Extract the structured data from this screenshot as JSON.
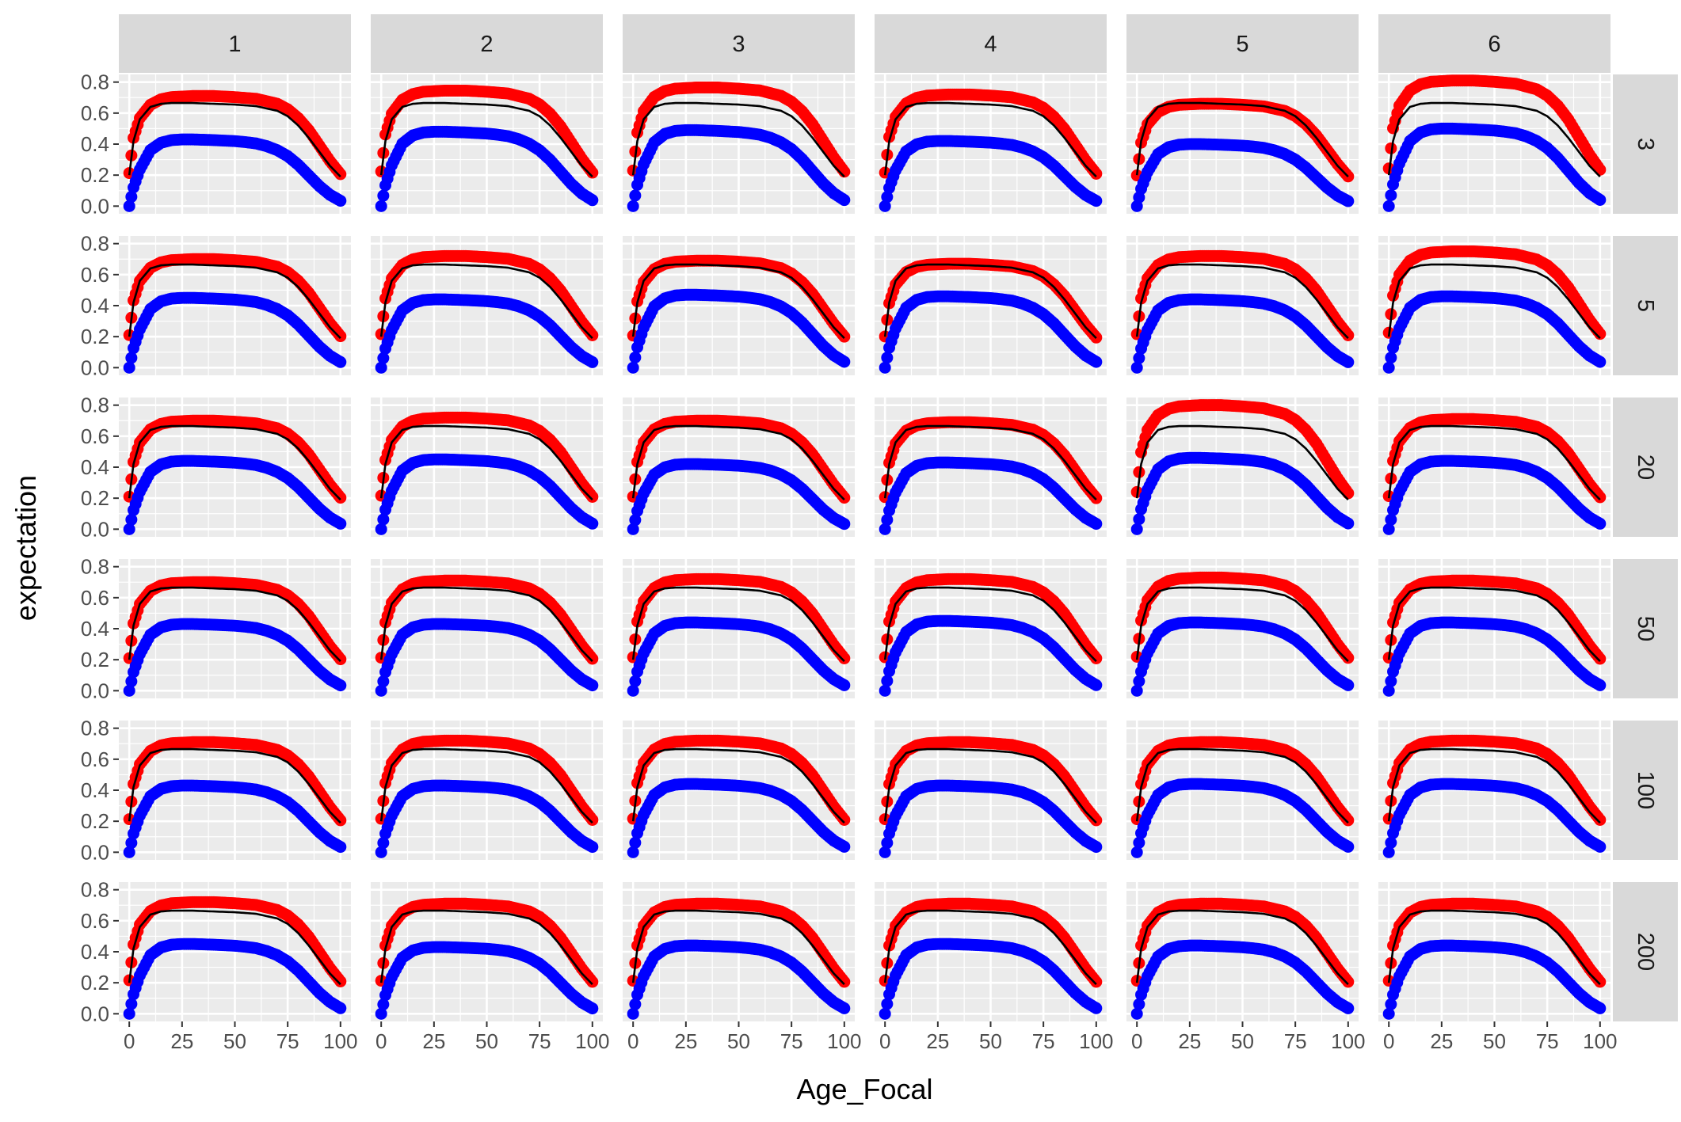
{
  "chart_data": {
    "type": "scatter",
    "facet": {
      "columns": [
        "1",
        "2",
        "3",
        "4",
        "5",
        "6"
      ],
      "rows": [
        "3",
        "5",
        "20",
        "50",
        "100",
        "200"
      ]
    },
    "xlabel": "Age_Focal",
    "ylabel": "expectation",
    "xlim": [
      0,
      100
    ],
    "ylim": [
      0,
      0.8
    ],
    "x_ticks": [
      "0",
      "25",
      "50",
      "75",
      "100"
    ],
    "y_ticks": [
      "0.0",
      "0.2",
      "0.4",
      "0.6",
      "0.8"
    ],
    "grid": true,
    "legend": "none",
    "colors": {
      "upper_points": "#ff0000",
      "lower_points": "#0000ff",
      "line": "#000000",
      "panel_background": "#ebebeb",
      "strip_background": "#d9d9d9",
      "grid": "#ffffff"
    },
    "reference_line": {
      "x": [
        0,
        2,
        5,
        10,
        15,
        20,
        30,
        40,
        50,
        60,
        70,
        75,
        80,
        85,
        90,
        95,
        100
      ],
      "y": [
        0.2,
        0.42,
        0.56,
        0.64,
        0.66,
        0.665,
        0.665,
        0.66,
        0.655,
        0.645,
        0.615,
        0.58,
        0.52,
        0.44,
        0.35,
        0.26,
        0.19
      ]
    },
    "series_shape": {
      "upper_x": [
        0,
        2,
        5,
        10,
        15,
        20,
        30,
        40,
        50,
        60,
        70,
        75,
        80,
        85,
        90,
        95,
        100
      ],
      "upper_y_relative": [
        0.3,
        0.62,
        0.8,
        0.92,
        0.97,
        0.99,
        1.0,
        1.0,
        0.99,
        0.975,
        0.93,
        0.88,
        0.8,
        0.69,
        0.55,
        0.41,
        0.29
      ],
      "lower_x": [
        0,
        2,
        5,
        10,
        15,
        20,
        25,
        30,
        40,
        50,
        55,
        60,
        65,
        70,
        75,
        80,
        85,
        90,
        95,
        100
      ],
      "lower_y_relative": [
        0.0,
        0.28,
        0.55,
        0.84,
        0.95,
        0.99,
        1.0,
        1.0,
        0.99,
        0.975,
        0.96,
        0.94,
        0.9,
        0.84,
        0.75,
        0.62,
        0.46,
        0.3,
        0.17,
        0.08
      ]
    },
    "panels": [
      {
        "row": "3",
        "col": "1",
        "upper_plateau": 0.71,
        "lower_plateau": 0.43
      },
      {
        "row": "3",
        "col": "2",
        "upper_plateau": 0.745,
        "lower_plateau": 0.48
      },
      {
        "row": "3",
        "col": "3",
        "upper_plateau": 0.765,
        "lower_plateau": 0.49
      },
      {
        "row": "3",
        "col": "4",
        "upper_plateau": 0.72,
        "lower_plateau": 0.42
      },
      {
        "row": "3",
        "col": "5",
        "upper_plateau": 0.66,
        "lower_plateau": 0.4
      },
      {
        "row": "3",
        "col": "6",
        "upper_plateau": 0.81,
        "lower_plateau": 0.5
      },
      {
        "row": "5",
        "col": "1",
        "upper_plateau": 0.7,
        "lower_plateau": 0.45
      },
      {
        "row": "5",
        "col": "2",
        "upper_plateau": 0.72,
        "lower_plateau": 0.44
      },
      {
        "row": "5",
        "col": "3",
        "upper_plateau": 0.69,
        "lower_plateau": 0.47
      },
      {
        "row": "5",
        "col": "4",
        "upper_plateau": 0.67,
        "lower_plateau": 0.46
      },
      {
        "row": "5",
        "col": "5",
        "upper_plateau": 0.72,
        "lower_plateau": 0.44
      },
      {
        "row": "5",
        "col": "6",
        "upper_plateau": 0.75,
        "lower_plateau": 0.46
      },
      {
        "row": "20",
        "col": "1",
        "upper_plateau": 0.7,
        "lower_plateau": 0.44
      },
      {
        "row": "20",
        "col": "2",
        "upper_plateau": 0.72,
        "lower_plateau": 0.45
      },
      {
        "row": "20",
        "col": "3",
        "upper_plateau": 0.7,
        "lower_plateau": 0.42
      },
      {
        "row": "20",
        "col": "4",
        "upper_plateau": 0.69,
        "lower_plateau": 0.43
      },
      {
        "row": "20",
        "col": "5",
        "upper_plateau": 0.8,
        "lower_plateau": 0.46
      },
      {
        "row": "20",
        "col": "6",
        "upper_plateau": 0.71,
        "lower_plateau": 0.44
      },
      {
        "row": "50",
        "col": "1",
        "upper_plateau": 0.7,
        "lower_plateau": 0.43
      },
      {
        "row": "50",
        "col": "2",
        "upper_plateau": 0.71,
        "lower_plateau": 0.43
      },
      {
        "row": "50",
        "col": "3",
        "upper_plateau": 0.72,
        "lower_plateau": 0.44
      },
      {
        "row": "50",
        "col": "4",
        "upper_plateau": 0.72,
        "lower_plateau": 0.45
      },
      {
        "row": "50",
        "col": "5",
        "upper_plateau": 0.73,
        "lower_plateau": 0.44
      },
      {
        "row": "50",
        "col": "6",
        "upper_plateau": 0.71,
        "lower_plateau": 0.44
      },
      {
        "row": "100",
        "col": "1",
        "upper_plateau": 0.71,
        "lower_plateau": 0.43
      },
      {
        "row": "100",
        "col": "2",
        "upper_plateau": 0.72,
        "lower_plateau": 0.43
      },
      {
        "row": "100",
        "col": "3",
        "upper_plateau": 0.72,
        "lower_plateau": 0.44
      },
      {
        "row": "100",
        "col": "4",
        "upper_plateau": 0.71,
        "lower_plateau": 0.43
      },
      {
        "row": "100",
        "col": "5",
        "upper_plateau": 0.71,
        "lower_plateau": 0.44
      },
      {
        "row": "100",
        "col": "6",
        "upper_plateau": 0.72,
        "lower_plateau": 0.44
      },
      {
        "row": "200",
        "col": "1",
        "upper_plateau": 0.72,
        "lower_plateau": 0.45
      },
      {
        "row": "200",
        "col": "2",
        "upper_plateau": 0.71,
        "lower_plateau": 0.43
      },
      {
        "row": "200",
        "col": "3",
        "upper_plateau": 0.71,
        "lower_plateau": 0.44
      },
      {
        "row": "200",
        "col": "4",
        "upper_plateau": 0.71,
        "lower_plateau": 0.45
      },
      {
        "row": "200",
        "col": "5",
        "upper_plateau": 0.71,
        "lower_plateau": 0.44
      },
      {
        "row": "200",
        "col": "6",
        "upper_plateau": 0.71,
        "lower_plateau": 0.44
      }
    ]
  }
}
